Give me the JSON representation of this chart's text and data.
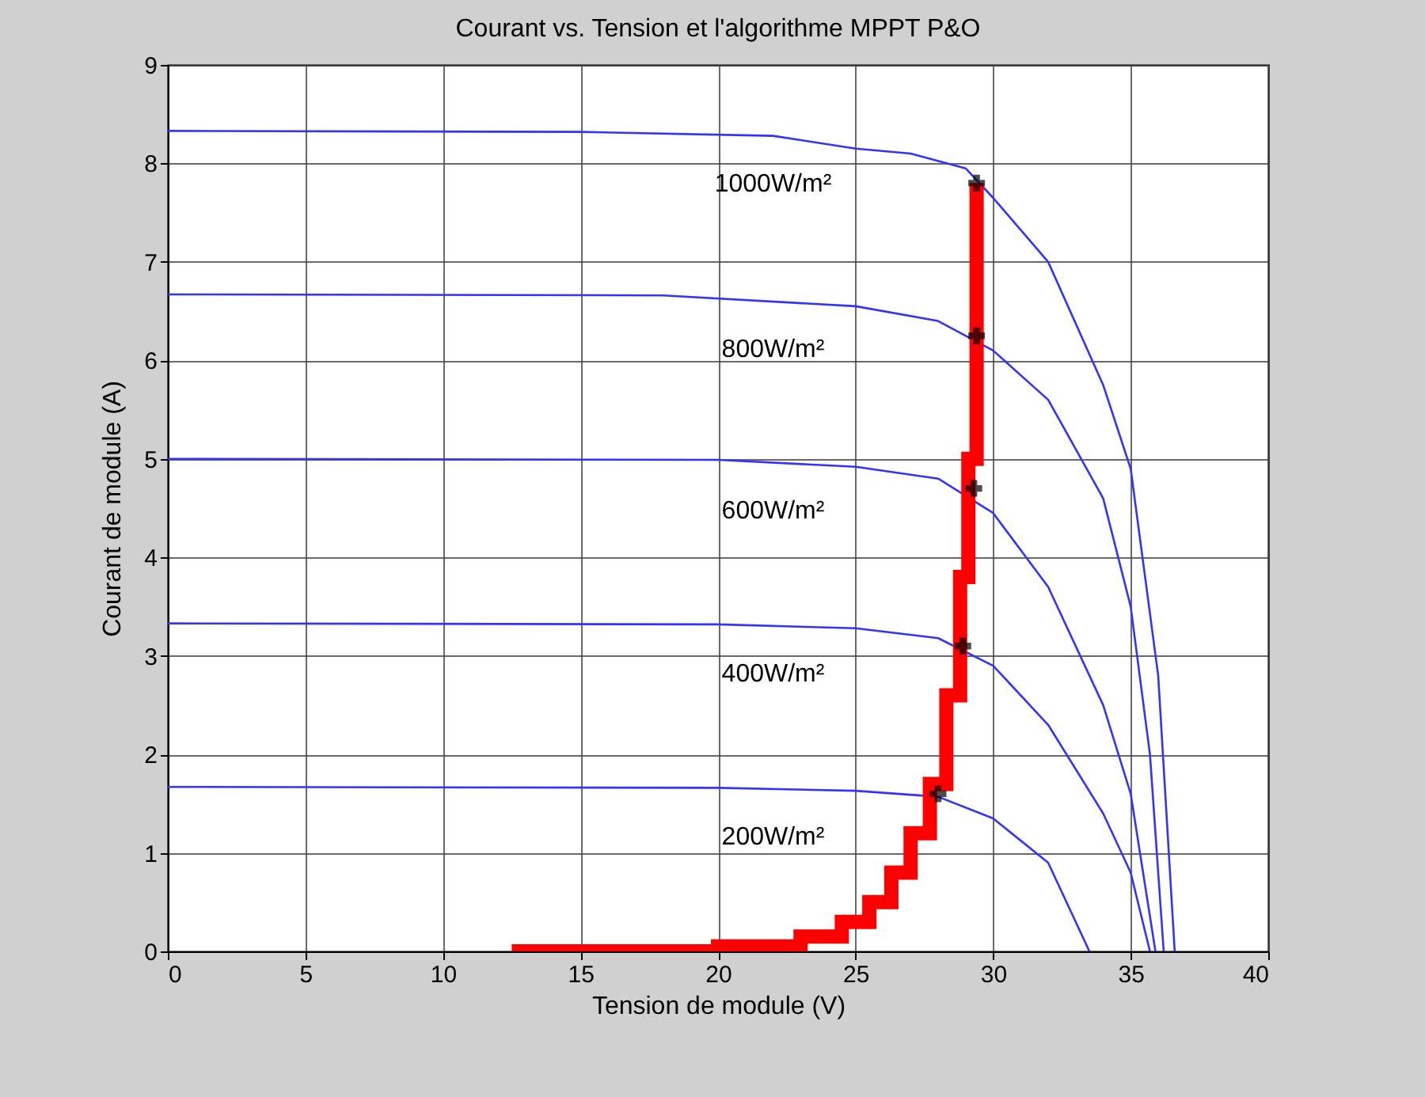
{
  "chart_data": {
    "type": "line",
    "title": "Courant vs. Tension et l'algorithme MPPT P&O",
    "xlabel": "Tension de module (V)",
    "ylabel": "Courant de module (A)",
    "xlim": [
      0,
      40
    ],
    "xticks": [
      0,
      5,
      10,
      15,
      20,
      25,
      30,
      35,
      40
    ],
    "ylim": [
      0,
      9
    ],
    "yticks": [
      0,
      1,
      2,
      3,
      4,
      5,
      6,
      7,
      8,
      9
    ],
    "grid": true,
    "series": [
      {
        "type": "line",
        "name": "1000W/m²",
        "color": "#3333ff",
        "x": [
          0,
          15,
          22,
          25,
          27,
          29,
          30,
          32,
          34,
          35,
          36,
          36.6
        ],
        "values": [
          8.33,
          8.32,
          8.28,
          8.15,
          8.1,
          7.95,
          7.65,
          7.0,
          5.75,
          4.9,
          2.8,
          0
        ]
      },
      {
        "type": "line",
        "name": "800W/m²",
        "color": "#3333ff",
        "x": [
          0,
          18,
          25,
          28,
          30,
          32,
          34,
          35,
          35.7,
          36.2
        ],
        "values": [
          6.67,
          6.66,
          6.55,
          6.4,
          6.1,
          5.6,
          4.6,
          3.5,
          2.0,
          0
        ]
      },
      {
        "name": "600W/m²",
        "color": "#3333ff",
        "x": [
          0,
          20,
          25,
          28,
          30,
          32,
          34,
          35,
          35.9
        ],
        "values": [
          5.0,
          4.99,
          4.92,
          4.8,
          4.45,
          3.7,
          2.5,
          1.6,
          0
        ]
      },
      {
        "name": "400W/m²",
        "color": "#3333ff",
        "x": [
          0,
          20,
          25,
          28,
          30,
          32,
          34,
          35,
          35.7
        ],
        "values": [
          3.33,
          3.32,
          3.28,
          3.18,
          2.9,
          2.3,
          1.4,
          0.8,
          0
        ]
      },
      {
        "name": "200W/m²",
        "color": "#3333ff",
        "x": [
          0,
          20,
          25,
          28,
          30,
          32,
          33.5
        ],
        "values": [
          1.67,
          1.66,
          1.63,
          1.57,
          1.35,
          0.9,
          0
        ]
      },
      {
        "type": "step",
        "color": "#ff0000",
        "x": [
          12.5,
          20,
          23,
          24.5,
          25.5,
          26.3,
          27,
          27.7,
          28.3,
          28.8,
          29.1,
          29.4
        ],
        "values": [
          0,
          0.05,
          0.15,
          0.3,
          0.5,
          0.8,
          1.2,
          1.7,
          2.6,
          3.8,
          5.0,
          7.8
        ]
      },
      {
        "type": "scatter",
        "color": "#000000",
        "marker": "cross",
        "x": [
          28.0,
          28.9,
          29.3,
          29.4,
          29.4
        ],
        "values": [
          1.6,
          3.1,
          4.7,
          6.25,
          7.8
        ]
      }
    ]
  }
}
